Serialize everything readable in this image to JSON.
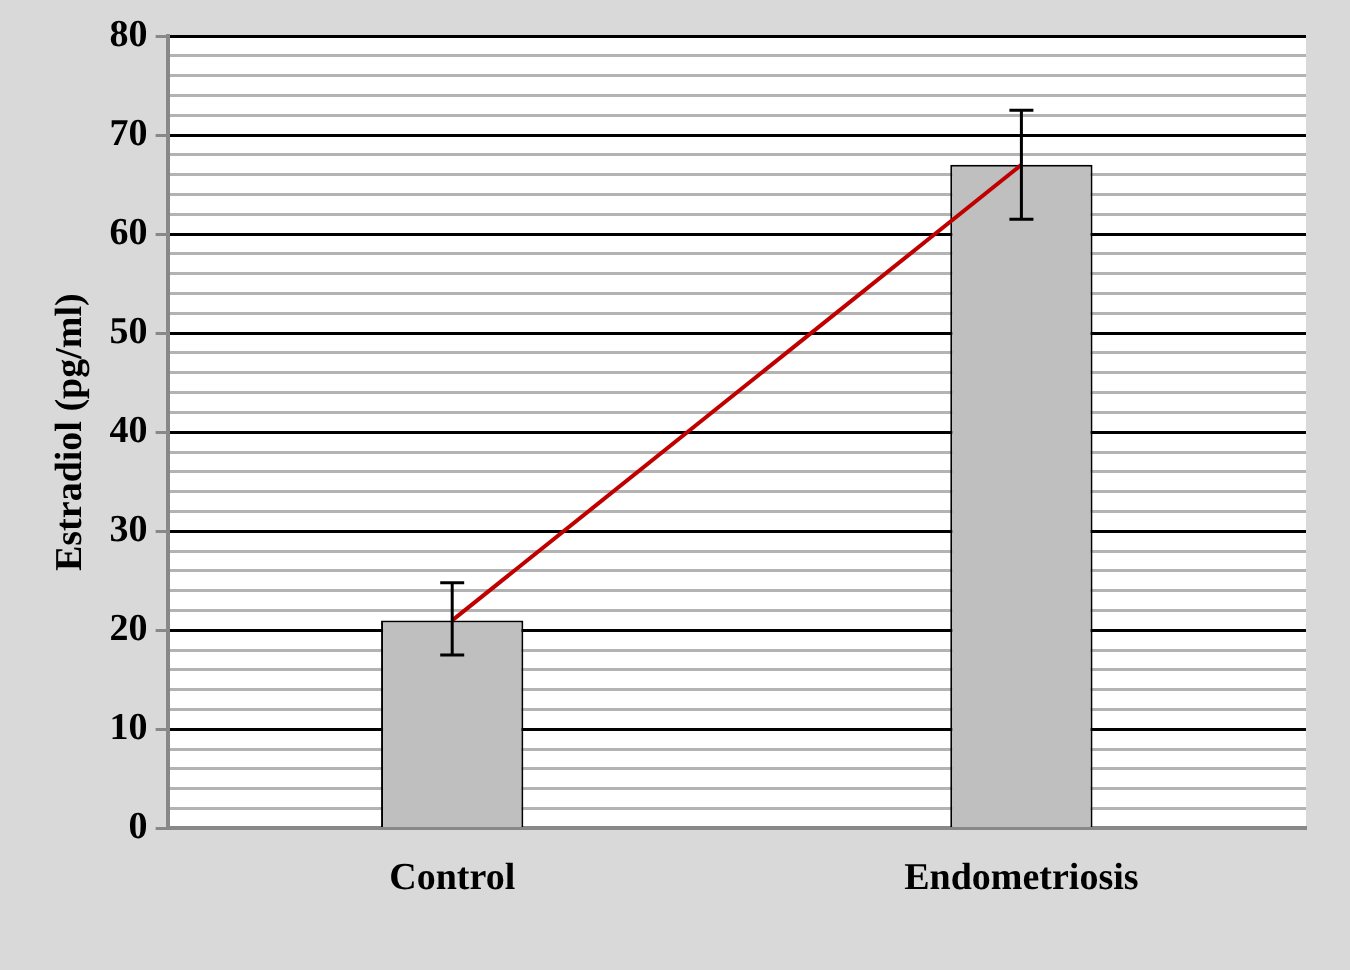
{
  "chart_data": {
    "type": "bar",
    "ylabel": "Estradiol (pg/ml)",
    "categories": [
      "Control",
      "Endometriosis"
    ],
    "series": [
      {
        "color": "#bfbfbf",
        "values": [
          21,
          67
        ],
        "errors": [
          [
            17.5,
            24.8
          ],
          [
            61.5,
            72.5
          ]
        ]
      },
      {
        "type": "line",
        "color": "#c00000",
        "x": [
          "Control",
          "Endometriosis"
        ],
        "values": [
          21,
          67
        ],
        "marker": "none"
      }
    ],
    "ylim": [
      0,
      80
    ],
    "yticks": [
      0,
      {
        "value": 2,
        "label": null
      },
      {
        "value": 4,
        "label": null
      },
      {
        "value": 6,
        "label": null
      },
      {
        "value": 8,
        "label": null
      },
      10,
      {
        "value": 12,
        "label": null
      },
      {
        "value": 14,
        "label": null
      },
      {
        "value": 16,
        "label": null
      },
      {
        "value": 18,
        "label": null
      },
      20,
      {
        "value": 22,
        "label": null
      },
      {
        "value": 24,
        "label": null
      },
      {
        "value": 26,
        "label": null
      },
      {
        "value": 28,
        "label": null
      },
      30,
      {
        "value": 32,
        "label": null
      },
      {
        "value": 34,
        "label": null
      },
      {
        "value": 36,
        "label": null
      },
      {
        "value": 38,
        "label": null
      },
      40,
      {
        "value": 42,
        "label": null
      },
      {
        "value": 44,
        "label": null
      },
      {
        "value": 46,
        "label": null
      },
      {
        "value": 48,
        "label": null
      },
      50,
      {
        "value": 52,
        "label": null
      },
      {
        "value": 54,
        "label": null
      },
      {
        "value": 56,
        "label": null
      },
      {
        "value": 58,
        "label": null
      },
      60,
      {
        "value": 62,
        "label": null
      },
      {
        "value": 64,
        "label": null
      },
      {
        "value": 66,
        "label": null
      },
      {
        "value": 68,
        "label": null
      },
      70,
      {
        "value": 72,
        "label": null
      },
      {
        "value": 74,
        "label": null
      },
      {
        "value": 76,
        "label": null
      },
      {
        "value": 78,
        "label": null
      },
      80
    ],
    "grid": "y",
    "legend": false
  }
}
